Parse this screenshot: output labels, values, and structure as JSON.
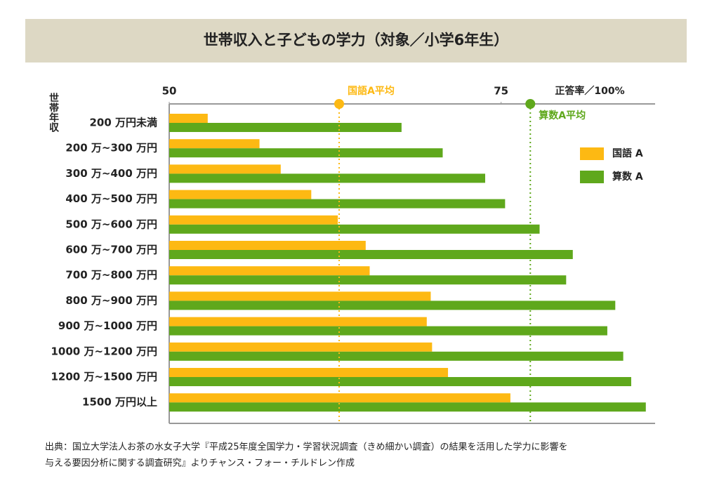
{
  "chart_data": {
    "type": "bar",
    "orientation": "horizontal",
    "title": "世帯収入と子どもの学力（対象／小学6年生）",
    "y_label": "世帯年収",
    "x_label": "正答率／100%",
    "categories": [
      "200 万円未満",
      "200 万~300 万円",
      "300 万~400 万円",
      "400 万~500 万円",
      "500 万~600 万円",
      "600 万~700 万円",
      "700 万~800 万円",
      "800 万~900 万円",
      "900 万~1000 万円",
      "1000 万~1200 万円",
      "1200 万~1500 万円",
      "1500 万円以上"
    ],
    "series": [
      {
        "name": "国語 A",
        "color": "#fdb913",
        "values": [
          52.9,
          56.8,
          58.4,
          60.7,
          62.7,
          64.8,
          65.1,
          69.7,
          69.4,
          69.8,
          71.0,
          75.7
        ]
      },
      {
        "name": "算数 A",
        "color": "#5fa81c",
        "values": [
          67.5,
          70.6,
          73.8,
          75.3,
          77.9,
          80.4,
          79.9,
          83.6,
          83.0,
          84.2,
          84.8,
          85.9
        ]
      }
    ],
    "reference_lines": [
      {
        "name": "国語A平均",
        "value": 62.8,
        "color": "#fdb913"
      },
      {
        "name": "算数A平均",
        "value": 77.2,
        "color": "#5fa81c"
      }
    ],
    "xlim": [
      50,
      86.6
    ],
    "xticks": [
      50,
      75
    ],
    "legend": "right",
    "source": [
      "出典：国立大学法人お茶の水女子大学『平成25年度全国学力・学習状況調査（きめ細かい調査）の結果を活用した学力に影響を",
      "与える要因分析に関する調査研究』よりチャンス・フォー・チルドレン作成"
    ]
  }
}
